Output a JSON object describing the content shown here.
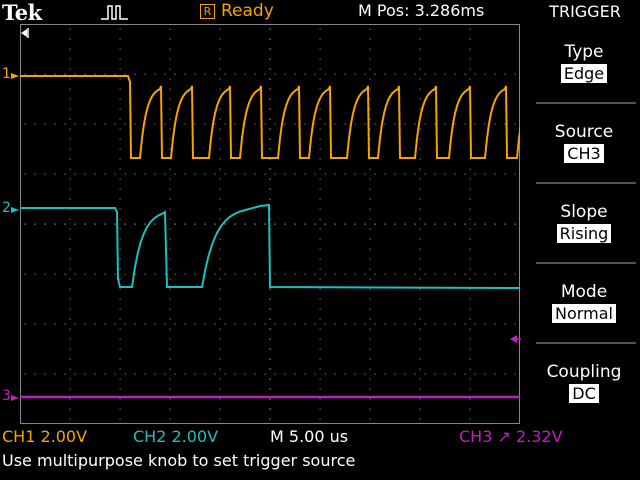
{
  "header": {
    "brand": "Tek",
    "acq_icon": "acquisition-waveform-icon",
    "run_state_glyph": "R",
    "run_state": "Ready",
    "mpos": "M Pos: 3.286ms"
  },
  "menu": {
    "title": "TRIGGER",
    "options": [
      {
        "label": "Type",
        "value": "Edge"
      },
      {
        "label": "Source",
        "value": "CH3"
      },
      {
        "label": "Slope",
        "value": "Rising"
      },
      {
        "label": "Mode",
        "value": "Normal"
      },
      {
        "label": "Coupling",
        "value": "DC"
      }
    ]
  },
  "channels": {
    "ch1": {
      "marker": "1",
      "label": "CH1  2.00V",
      "color": "#f4a300"
    },
    "ch2": {
      "marker": "2",
      "label": "CH2  2.00V",
      "color": "#19c0c0"
    },
    "ch3": {
      "marker": "3",
      "label": "CH3  ↗ 2.32V",
      "color": "#c020c0"
    }
  },
  "timebase": "M 5.00 us",
  "status_message": "Use multipurpose knob to set trigger source"
}
